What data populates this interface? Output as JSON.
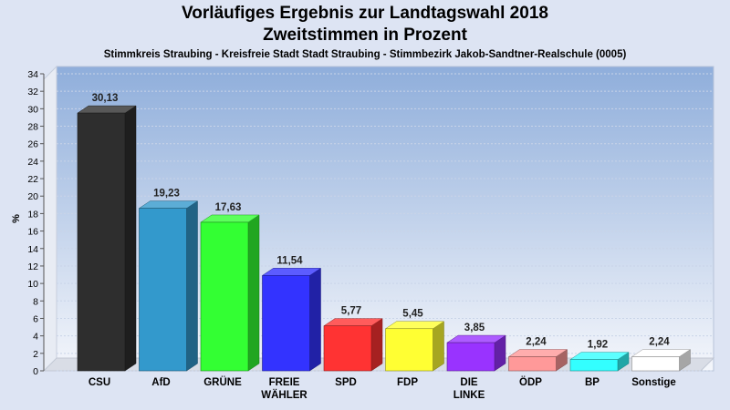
{
  "title": "Vorläufiges Ergebnis zur Landtagswahl 2018",
  "subtitle": "Zweitstimmen in Prozent",
  "caption": "Stimmkreis Straubing - Kreisfreie Stadt Stadt Straubing - Stimmbezirk Jakob-Sandtner-Realschule (0005)",
  "colors": {
    "background": "#dde4f3",
    "plot_gradient_top": "#8faedb",
    "plot_gradient_bottom": "#f4f6fb"
  },
  "chart_data": {
    "type": "bar",
    "title": "Vorläufiges Ergebnis zur Landtagswahl 2018",
    "subtitle": "Zweitstimmen in Prozent",
    "xlabel": "",
    "ylabel": "%",
    "ylim": [
      0,
      34
    ],
    "ytick_step": 2,
    "yticks": [
      "0",
      "2",
      "4",
      "6",
      "8",
      "10",
      "12",
      "14",
      "16",
      "18",
      "20",
      "22",
      "24",
      "26",
      "28",
      "30",
      "32",
      "34"
    ],
    "grid": true,
    "categories": [
      [
        "CSU"
      ],
      [
        "AfD"
      ],
      [
        "GRÜNE"
      ],
      [
        "FREIE",
        "WÄHLER"
      ],
      [
        "SPD"
      ],
      [
        "FDP"
      ],
      [
        "DIE",
        "LINKE"
      ],
      [
        "ÖDP"
      ],
      [
        "BP"
      ],
      [
        "Sonstige"
      ]
    ],
    "values": [
      30.13,
      19.23,
      17.63,
      11.54,
      5.77,
      5.45,
      3.85,
      2.24,
      1.92,
      2.24
    ],
    "value_labels": [
      "30,13",
      "19,23",
      "17,63",
      "11,54",
      "5,77",
      "5,45",
      "3,85",
      "2,24",
      "1,92",
      "2,24"
    ],
    "bar_colors": [
      "#2e2e2e",
      "#3399cc",
      "#33ff33",
      "#3333ff",
      "#ff3333",
      "#ffff33",
      "#9933ff",
      "#ff9999",
      "#33ffff",
      "#ffffff"
    ]
  }
}
